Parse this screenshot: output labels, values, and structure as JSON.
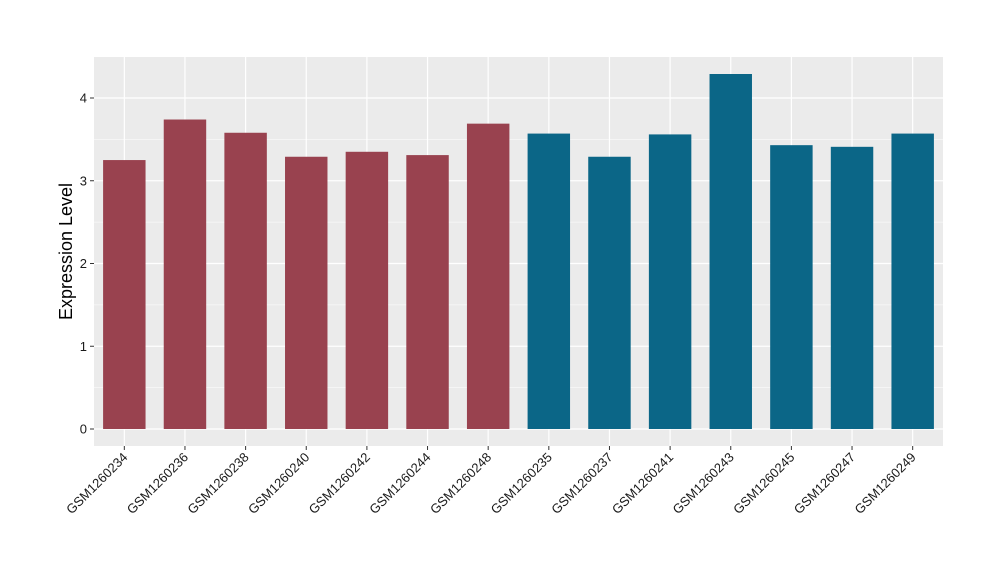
{
  "chart_data": {
    "type": "bar",
    "ylabel": "Expression Level",
    "xlabel": "",
    "ylim": [
      0,
      4.5
    ],
    "yticks": [
      0,
      1,
      2,
      3,
      4
    ],
    "grid": true,
    "categories": [
      "GSM1260234",
      "GSM1260236",
      "GSM1260238",
      "GSM1260240",
      "GSM1260242",
      "GSM1260244",
      "GSM1260248",
      "GSM1260235",
      "GSM1260237",
      "GSM1260241",
      "GSM1260243",
      "GSM1260245",
      "GSM1260247",
      "GSM1260249"
    ],
    "values": [
      3.25,
      3.74,
      3.58,
      3.29,
      3.35,
      3.31,
      3.69,
      3.57,
      3.29,
      3.56,
      4.29,
      3.43,
      3.41,
      3.57
    ],
    "bar_colors": [
      "#99424f",
      "#99424f",
      "#99424f",
      "#99424f",
      "#99424f",
      "#99424f",
      "#99424f",
      "#0b6687",
      "#0b6687",
      "#0b6687",
      "#0b6687",
      "#0b6687",
      "#0b6687",
      "#0b6687"
    ],
    "colors": {
      "panel_background": "#ebebeb",
      "gridline": "#ffffff",
      "group_1": "#99424f",
      "group_2": "#0b6687"
    }
  }
}
